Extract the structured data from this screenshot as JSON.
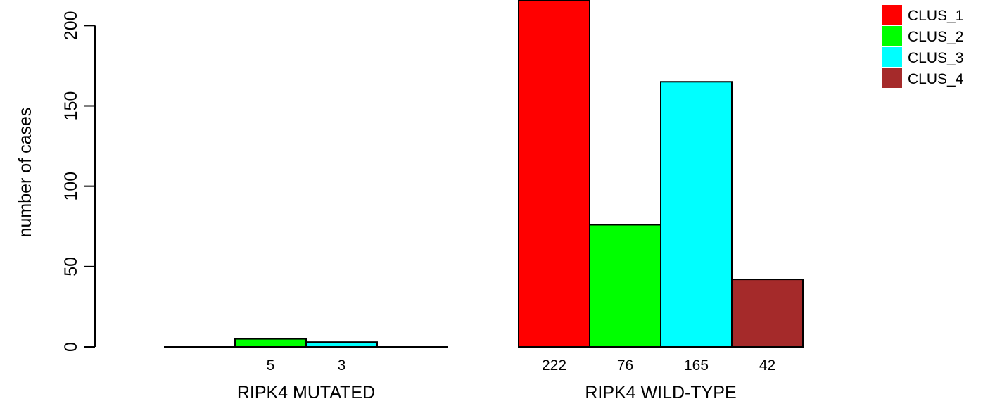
{
  "chart_data": {
    "type": "bar",
    "ylabel": "number of cases",
    "ylim": [
      0,
      222
    ],
    "yticks": [
      0,
      50,
      100,
      150,
      200
    ],
    "groups": [
      {
        "label": "RIPK4 MUTATED",
        "values": [
          0,
          5,
          3,
          0
        ],
        "count_labels": [
          "",
          "5",
          "3",
          ""
        ]
      },
      {
        "label": "RIPK4 WILD-TYPE",
        "values": [
          222,
          76,
          165,
          42
        ],
        "count_labels": [
          "222",
          "76",
          "165",
          "42"
        ]
      }
    ],
    "series": [
      {
        "name": "CLUS_1",
        "color": "#ff0000"
      },
      {
        "name": "CLUS_2",
        "color": "#00ff00"
      },
      {
        "name": "CLUS_3",
        "color": "#00ffff"
      },
      {
        "name": "CLUS_4",
        "color": "#a52a2a"
      }
    ],
    "legend": "top-right"
  }
}
